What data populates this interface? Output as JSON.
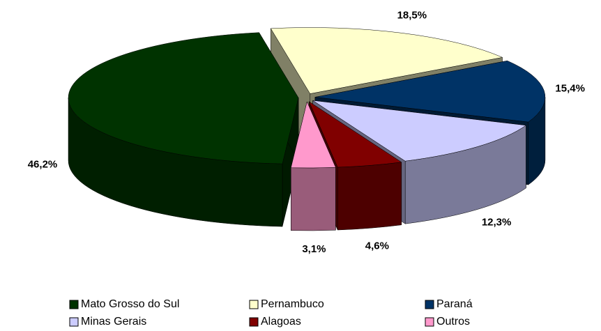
{
  "chart_data": {
    "type": "pie3d",
    "categories": [
      "Mato Grosso do Sul",
      "Pernambuco",
      "Paraná",
      "Minas Gerais",
      "Alagoas",
      "Outros"
    ],
    "values": [
      46.2,
      18.5,
      15.4,
      12.3,
      4.6,
      3.1
    ],
    "value_labels": [
      "46,2%",
      "18,5%",
      "15,4%",
      "12,3%",
      "4,6%",
      "3,1%"
    ],
    "colors": [
      "#003300",
      "#ffffcc",
      "#003366",
      "#ccccff",
      "#800000",
      "#ff99cc"
    ],
    "legend": "bottom"
  }
}
